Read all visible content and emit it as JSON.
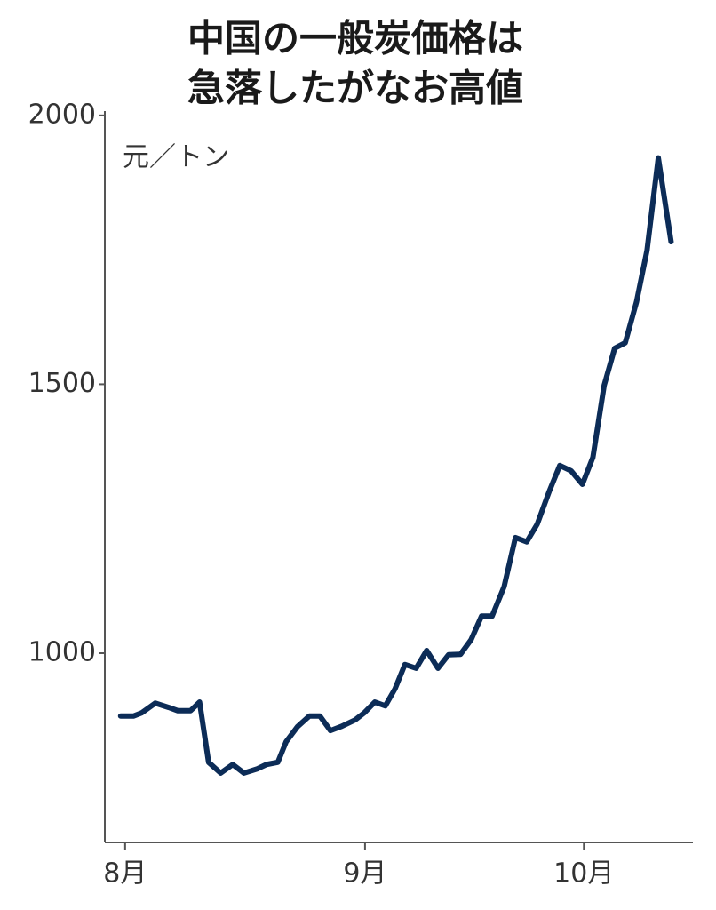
{
  "chart_data": {
    "type": "line",
    "title": [
      "中国の一般炭価格は",
      "急落したがなお高値"
    ],
    "y_label": "元／トン",
    "x": [
      -0.6,
      1.1,
      2.2,
      4.0,
      5.8,
      7.0,
      8.7,
      9.9,
      11.1,
      12.7,
      14.3,
      15.8,
      17.6,
      18.8,
      20.3,
      21.4,
      22.9,
      24.5,
      25.9,
      27.3,
      28.8,
      30.6,
      31.8,
      33.2,
      34.6,
      35.9,
      37.2,
      38.7,
      40.1,
      41.6,
      43.0,
      44.6,
      46.0,
      47.4,
      48.8,
      50.4,
      51.9,
      53.4,
      54.8,
      56.4,
      57.8,
      59.3,
      60.8,
      62.2,
      63.7,
      65.1,
      66.5,
      68.0,
      69.4,
      70.9,
      72.6
    ],
    "series": [
      {
        "color": "#0c2c57",
        "values": [
          883,
          883,
          889,
          907,
          899,
          893,
          893,
          909,
          797,
          777,
          793,
          777,
          785,
          793,
          797,
          835,
          863,
          883,
          883,
          856,
          864,
          876,
          889,
          909,
          902,
          934,
          979,
          972,
          1005,
          972,
          997,
          998,
          1025,
          1069,
          1069,
          1124,
          1215,
          1207,
          1240,
          1301,
          1349,
          1339,
          1314,
          1364,
          1498,
          1567,
          1577,
          1653,
          1749,
          1921,
          1765
        ]
      }
    ],
    "xlim": [
      -2.7,
      75.5
    ],
    "xticks": [
      {
        "value": 0,
        "label": "8月"
      },
      {
        "value": 31.9,
        "label": "9月"
      },
      {
        "value": 61,
        "label": "10月"
      }
    ],
    "ylim": [
      648,
      2008
    ],
    "yticks": [
      1000,
      1500,
      2000
    ],
    "grid": false
  }
}
